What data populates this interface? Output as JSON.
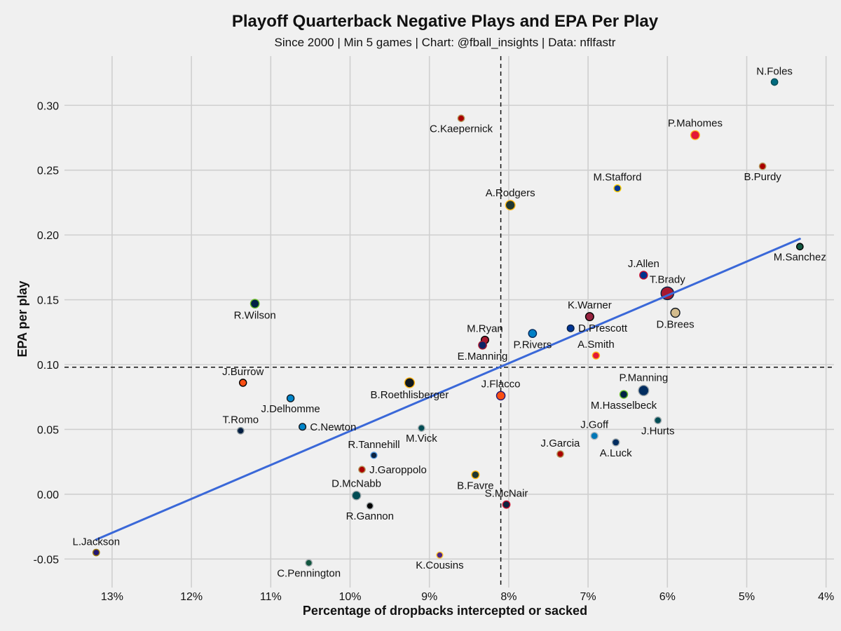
{
  "chart_data": {
    "type": "scatter",
    "title": "Playoff Quarterback Negative Plays and EPA Per Play",
    "subtitle": "Since 2000 | Min 5 games | Chart: @fball_insights | Data: nflfastr",
    "xlabel": "Percentage of dropbacks intercepted or sacked",
    "ylabel": "EPA per play",
    "x_reversed": true,
    "xlim": [
      13.6,
      3.9
    ],
    "ylim": [
      -0.072,
      0.338
    ],
    "x_ticks": [
      {
        "value": 13,
        "label": "13%"
      },
      {
        "value": 12,
        "label": "12%"
      },
      {
        "value": 11,
        "label": "11%"
      },
      {
        "value": 10,
        "label": "10%"
      },
      {
        "value": 9,
        "label": "9%"
      },
      {
        "value": 8,
        "label": "8%"
      },
      {
        "value": 7,
        "label": "7%"
      },
      {
        "value": 6,
        "label": "6%"
      },
      {
        "value": 5,
        "label": "5%"
      },
      {
        "value": 4,
        "label": "4%"
      }
    ],
    "y_ticks": [
      {
        "value": -0.05,
        "label": "-0.05"
      },
      {
        "value": 0.0,
        "label": "0.00"
      },
      {
        "value": 0.05,
        "label": "0.05"
      },
      {
        "value": 0.1,
        "label": "0.10"
      },
      {
        "value": 0.15,
        "label": "0.15"
      },
      {
        "value": 0.2,
        "label": "0.20"
      },
      {
        "value": 0.25,
        "label": "0.25"
      },
      {
        "value": 0.3,
        "label": "0.30"
      }
    ],
    "mean_x": 8.1,
    "mean_y": 0.098,
    "trend_line": {
      "x": [
        13.2,
        4.33
      ],
      "y": [
        -0.035,
        0.197
      ],
      "color": "#3a68d8"
    },
    "points": [
      {
        "name": "N.Foles",
        "x": 4.65,
        "y": 0.318,
        "games": 6,
        "fill": "#006b80",
        "edge": "#004c54",
        "label_pos": "above"
      },
      {
        "name": "C.Kaepernick",
        "x": 8.6,
        "y": 0.29,
        "games": 6,
        "fill": "#aa0000",
        "edge": "#b3995d",
        "label_pos": "below"
      },
      {
        "name": "P.Mahomes",
        "x": 5.65,
        "y": 0.277,
        "games": 17,
        "fill": "#e31837",
        "edge": "#ffb81c",
        "label_pos": "above"
      },
      {
        "name": "B.Purdy",
        "x": 4.8,
        "y": 0.253,
        "games": 6,
        "fill": "#aa0000",
        "edge": "#b3995d",
        "label_pos": "below"
      },
      {
        "name": "M.Stafford",
        "x": 6.63,
        "y": 0.236,
        "games": 8,
        "fill": "#003594",
        "edge": "#ffd100",
        "label_pos": "above"
      },
      {
        "name": "A.Rodgers",
        "x": 7.98,
        "y": 0.223,
        "games": 21,
        "fill": "#203731",
        "edge": "#ffb612",
        "label_pos": "above"
      },
      {
        "name": "M.Sanchez",
        "x": 4.33,
        "y": 0.191,
        "games": 6,
        "fill": "#125740",
        "edge": "#000000",
        "label_pos": "below"
      },
      {
        "name": "J.Allen",
        "x": 6.3,
        "y": 0.169,
        "games": 11,
        "fill": "#00338d",
        "edge": "#c60c30",
        "label_pos": "above"
      },
      {
        "name": "T.Brady",
        "x": 6.0,
        "y": 0.155,
        "games": 47,
        "fill": "#a71930",
        "edge": "#002244",
        "label_pos": "above"
      },
      {
        "name": "D.Brees",
        "x": 5.9,
        "y": 0.14,
        "games": 18,
        "fill": "#d3bc8d",
        "edge": "#101820",
        "label_pos": "below"
      },
      {
        "name": "R.Wilson",
        "x": 11.2,
        "y": 0.147,
        "games": 16,
        "fill": "#002244",
        "edge": "#69be28",
        "label_pos": "below"
      },
      {
        "name": "K.Warner",
        "x": 6.98,
        "y": 0.137,
        "games": 13,
        "fill": "#97233f",
        "edge": "#000000",
        "label_pos": "above"
      },
      {
        "name": "D.Prescott",
        "x": 7.22,
        "y": 0.128,
        "games": 7,
        "fill": "#003594",
        "edge": "#041e42",
        "label_pos": "right"
      },
      {
        "name": "P.Rivers",
        "x": 7.7,
        "y": 0.124,
        "games": 12,
        "fill": "#0080c6",
        "edge": "#002a5e",
        "label_pos": "below"
      },
      {
        "name": "M.Ryan",
        "x": 8.3,
        "y": 0.119,
        "games": 10,
        "fill": "#a71930",
        "edge": "#000000",
        "label_pos": "above"
      },
      {
        "name": "E.Manning",
        "x": 8.33,
        "y": 0.115,
        "games": 12,
        "fill": "#0b2265",
        "edge": "#a71930",
        "label_pos": "below"
      },
      {
        "name": "A.Smith",
        "x": 6.9,
        "y": 0.107,
        "games": 8,
        "fill": "#e31837",
        "edge": "#ffb81c",
        "label_pos": "above"
      },
      {
        "name": "J.Burrow",
        "x": 11.35,
        "y": 0.086,
        "games": 8,
        "fill": "#fb4f14",
        "edge": "#000000",
        "label_pos": "above"
      },
      {
        "name": "B.Roethlisberger",
        "x": 9.25,
        "y": 0.086,
        "games": 23,
        "fill": "#101820",
        "edge": "#ffb612",
        "label_pos": "below"
      },
      {
        "name": "P.Manning",
        "x": 6.3,
        "y": 0.08,
        "games": 27,
        "fill": "#002c5f",
        "edge": "#a5acaf",
        "label_pos": "above"
      },
      {
        "name": "M.Hasselbeck",
        "x": 6.55,
        "y": 0.077,
        "games": 11,
        "fill": "#002244",
        "edge": "#69be28",
        "label_pos": "below"
      },
      {
        "name": "J.Flacco",
        "x": 8.1,
        "y": 0.076,
        "games": 15,
        "fill": "#fb4f14",
        "edge": "#241773",
        "label_pos": "above"
      },
      {
        "name": "J.Delhomme",
        "x": 10.75,
        "y": 0.074,
        "games": 8,
        "fill": "#0085ca",
        "edge": "#101820",
        "label_pos": "below"
      },
      {
        "name": "J.Hurts",
        "x": 6.12,
        "y": 0.057,
        "games": 7,
        "fill": "#004c54",
        "edge": "#a5acaf",
        "label_pos": "below"
      },
      {
        "name": "C.Newton",
        "x": 10.6,
        "y": 0.052,
        "games": 7,
        "fill": "#0085ca",
        "edge": "#101820",
        "label_pos": "right"
      },
      {
        "name": "M.Vick",
        "x": 9.1,
        "y": 0.051,
        "games": 6,
        "fill": "#004c54",
        "edge": "#a5acaf",
        "label_pos": "below"
      },
      {
        "name": "T.Romo",
        "x": 11.38,
        "y": 0.049,
        "games": 6,
        "fill": "#041e42",
        "edge": "#869397",
        "label_pos": "above"
      },
      {
        "name": "J.Goff",
        "x": 6.92,
        "y": 0.045,
        "games": 8,
        "fill": "#0076b6",
        "edge": "#b0b7bc",
        "label_pos": "above"
      },
      {
        "name": "A.Luck",
        "x": 6.65,
        "y": 0.04,
        "games": 8,
        "fill": "#002c5f",
        "edge": "#a2aaad",
        "label_pos": "below"
      },
      {
        "name": "J.Garcia",
        "x": 7.35,
        "y": 0.031,
        "games": 6,
        "fill": "#aa0000",
        "edge": "#b3995d",
        "label_pos": "above"
      },
      {
        "name": "R.Tannehill",
        "x": 9.7,
        "y": 0.03,
        "games": 5,
        "fill": "#0c2340",
        "edge": "#4b92db",
        "label_pos": "above"
      },
      {
        "name": "J.Garoppolo",
        "x": 9.85,
        "y": 0.019,
        "games": 6,
        "fill": "#aa0000",
        "edge": "#b3995d",
        "label_pos": "right"
      },
      {
        "name": "B.Favre",
        "x": 8.42,
        "y": 0.015,
        "games": 10,
        "fill": "#203731",
        "edge": "#ffb612",
        "label_pos": "below"
      },
      {
        "name": "D.McNabb",
        "x": 9.92,
        "y": -0.001,
        "games": 16,
        "fill": "#004c54",
        "edge": "#a5acaf",
        "label_pos": "above"
      },
      {
        "name": "R.Gannon",
        "x": 9.75,
        "y": -0.009,
        "games": 6,
        "fill": "#000000",
        "edge": "#a5acaf",
        "label_pos": "below"
      },
      {
        "name": "S.McNair",
        "x": 8.03,
        "y": -0.008,
        "games": 9,
        "fill": "#0c2340",
        "edge": "#c8102e",
        "label_pos": "above"
      },
      {
        "name": "L.Jackson",
        "x": 13.2,
        "y": -0.045,
        "games": 6,
        "fill": "#241773",
        "edge": "#9e7c0c",
        "label_pos": "above"
      },
      {
        "name": "C.Pennington",
        "x": 10.52,
        "y": -0.053,
        "games": 6,
        "fill": "#125740",
        "edge": "#a5acaf",
        "label_pos": "below"
      },
      {
        "name": "K.Cousins",
        "x": 8.87,
        "y": -0.047,
        "games": 5,
        "fill": "#4f2683",
        "edge": "#ffc62f",
        "label_pos": "below"
      }
    ]
  }
}
